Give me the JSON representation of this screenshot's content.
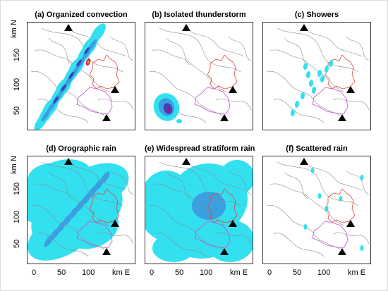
{
  "figure": {
    "panels": [
      {
        "id": "a",
        "title": "(a) Organized convection"
      },
      {
        "id": "b",
        "title": "(b) Isolated thunderstorm"
      },
      {
        "id": "c",
        "title": "(c) Showers"
      },
      {
        "id": "d",
        "title": "(d) Orographic rain"
      },
      {
        "id": "e",
        "title": "(e) Widespread stratiform rain"
      },
      {
        "id": "f",
        "title": "(f) Scattered rain"
      }
    ],
    "y_axis": {
      "label": "km N",
      "ticks": [
        "150",
        "100",
        "50"
      ]
    },
    "x_axis": {
      "label": "km E",
      "ticks": [
        "0",
        "50",
        "100"
      ]
    }
  },
  "colors": {
    "terrain_contour": "#8a8a8a",
    "boundary_red": "#e0403a",
    "boundary_magenta": "#c050d0",
    "rain_light": "#33e0f0",
    "rain_medium": "#3aa0e0",
    "rain_heavy": "#4040c0",
    "rain_intense": "#c01060",
    "rain_extreme": "#f0a020",
    "marker": "#000000"
  }
}
